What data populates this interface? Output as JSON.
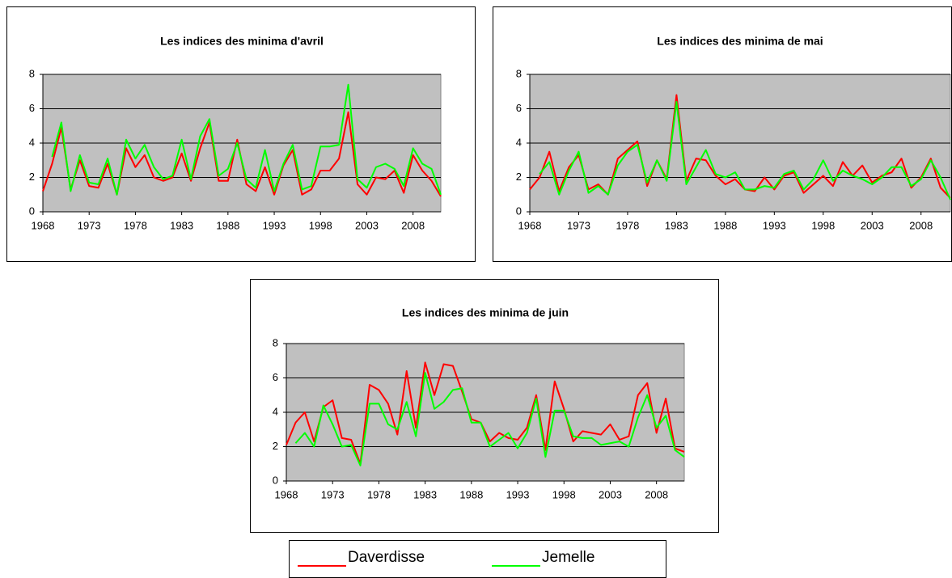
{
  "chart_data": [
    {
      "type": "line",
      "title": "Les indices des minima d'avril",
      "x": [
        1968,
        1969,
        1970,
        1971,
        1972,
        1973,
        1974,
        1975,
        1976,
        1977,
        1978,
        1979,
        1980,
        1981,
        1982,
        1983,
        1984,
        1985,
        1986,
        1987,
        1988,
        1989,
        1990,
        1991,
        1992,
        1993,
        1994,
        1995,
        1996,
        1997,
        1998,
        1999,
        2000,
        2001,
        2002,
        2003,
        2004,
        2005,
        2006,
        2007,
        2008,
        2009,
        2010,
        2011
      ],
      "xlim": [
        1968,
        2011
      ],
      "xticks": [
        1968,
        1973,
        1978,
        1983,
        1988,
        1993,
        1998,
        2003,
        2008
      ],
      "ylim": [
        0,
        8
      ],
      "yticks": [
        0,
        2,
        4,
        6,
        8
      ],
      "grid": true,
      "series": [
        {
          "name": "Daverdisse",
          "color": "#ff0000",
          "values": [
            1.2,
            2.8,
            4.9,
            1.3,
            3.0,
            1.5,
            1.4,
            2.8,
            1.0,
            3.7,
            2.6,
            3.3,
            2.0,
            1.8,
            2.0,
            3.4,
            1.8,
            3.7,
            5.2,
            1.8,
            1.8,
            4.2,
            1.6,
            1.2,
            2.6,
            1.0,
            2.7,
            3.6,
            1.0,
            1.3,
            2.4,
            2.4,
            3.1,
            5.8,
            1.6,
            1.0,
            2.0,
            1.9,
            2.4,
            1.1,
            3.3,
            2.4,
            1.8,
            0.9
          ]
        },
        {
          "name": "Jemelle",
          "color": "#00ff00",
          "values": [
            null,
            3.2,
            5.2,
            1.2,
            3.3,
            1.7,
            1.6,
            3.1,
            1.0,
            4.2,
            3.1,
            3.9,
            2.6,
            1.9,
            2.1,
            4.2,
            1.9,
            4.4,
            5.4,
            2.1,
            2.5,
            4.0,
            1.9,
            1.4,
            3.6,
            1.2,
            2.8,
            3.9,
            1.3,
            1.5,
            3.8,
            3.8,
            3.9,
            7.4,
            1.9,
            1.4,
            2.6,
            2.8,
            2.5,
            1.5,
            3.7,
            2.8,
            2.5,
            1.0
          ]
        }
      ]
    },
    {
      "type": "line",
      "title": "Les indices des minima de mai",
      "x": [
        1968,
        1969,
        1970,
        1971,
        1972,
        1973,
        1974,
        1975,
        1976,
        1977,
        1978,
        1979,
        1980,
        1981,
        1982,
        1983,
        1984,
        1985,
        1986,
        1987,
        1988,
        1989,
        1990,
        1991,
        1992,
        1993,
        1994,
        1995,
        1996,
        1997,
        1998,
        1999,
        2000,
        2001,
        2002,
        2003,
        2004,
        2005,
        2006,
        2007,
        2008,
        2009,
        2010,
        2011
      ],
      "xlim": [
        1968,
        2011
      ],
      "xticks": [
        1968,
        1973,
        1978,
        1983,
        1988,
        1993,
        1998,
        2003,
        2008
      ],
      "ylim": [
        0,
        8
      ],
      "yticks": [
        0,
        2,
        4,
        6,
        8
      ],
      "grid": true,
      "series": [
        {
          "name": "Daverdisse",
          "color": "#ff0000",
          "values": [
            1.3,
            2.0,
            3.5,
            1.2,
            2.6,
            3.3,
            1.3,
            1.6,
            1.0,
            3.1,
            3.6,
            4.1,
            1.5,
            3.0,
            1.9,
            6.8,
            1.8,
            3.1,
            3.0,
            2.1,
            1.6,
            1.9,
            1.3,
            1.2,
            2.0,
            1.3,
            2.1,
            2.3,
            1.1,
            1.6,
            2.1,
            1.5,
            2.9,
            2.1,
            2.7,
            1.7,
            2.1,
            2.3,
            3.1,
            1.4,
            2.0,
            3.1,
            1.4,
            0.8
          ]
        },
        {
          "name": "Jemelle",
          "color": "#00ff00",
          "values": [
            null,
            2.2,
            2.9,
            1.0,
            2.4,
            3.5,
            1.1,
            1.5,
            1.0,
            2.7,
            3.5,
            3.9,
            1.7,
            3.0,
            1.8,
            6.4,
            1.6,
            2.6,
            3.6,
            2.2,
            2.0,
            2.3,
            1.3,
            1.3,
            1.5,
            1.4,
            2.2,
            2.4,
            1.3,
            1.9,
            3.0,
            1.8,
            2.4,
            2.1,
            1.9,
            1.6,
            2.0,
            2.6,
            2.6,
            1.5,
            1.9,
            3.0,
            2.0,
            0.7
          ]
        }
      ]
    },
    {
      "type": "line",
      "title": "Les indices des minima de juin",
      "x": [
        1968,
        1969,
        1970,
        1971,
        1972,
        1973,
        1974,
        1975,
        1976,
        1977,
        1978,
        1979,
        1980,
        1981,
        1982,
        1983,
        1984,
        1985,
        1986,
        1987,
        1988,
        1989,
        1990,
        1991,
        1992,
        1993,
        1994,
        1995,
        1996,
        1997,
        1998,
        1999,
        2000,
        2001,
        2002,
        2003,
        2004,
        2005,
        2006,
        2007,
        2008,
        2009,
        2010,
        2011
      ],
      "xlim": [
        1968,
        2011
      ],
      "xticks": [
        1968,
        1973,
        1978,
        1983,
        1988,
        1993,
        1998,
        2003,
        2008
      ],
      "ylim": [
        0,
        8
      ],
      "yticks": [
        0,
        2,
        4,
        6,
        8
      ],
      "grid": true,
      "series": [
        {
          "name": "Daverdisse",
          "color": "#ff0000",
          "values": [
            2.1,
            3.4,
            4.0,
            2.3,
            4.3,
            4.7,
            2.5,
            2.4,
            1.0,
            5.6,
            5.3,
            4.5,
            2.7,
            6.4,
            3.1,
            6.9,
            5.0,
            6.8,
            6.7,
            5.2,
            3.6,
            3.4,
            2.3,
            2.8,
            2.5,
            2.4,
            3.1,
            5.0,
            1.8,
            5.8,
            4.2,
            2.3,
            2.9,
            2.8,
            2.7,
            3.3,
            2.4,
            2.6,
            5.0,
            5.7,
            2.8,
            4.8,
            1.9,
            1.7
          ]
        },
        {
          "name": "Jemelle",
          "color": "#00ff00",
          "values": [
            null,
            2.2,
            2.8,
            2.0,
            4.4,
            3.3,
            2.0,
            2.1,
            0.9,
            4.5,
            4.5,
            3.3,
            3.0,
            4.6,
            2.6,
            6.3,
            4.2,
            4.6,
            5.3,
            5.4,
            3.4,
            3.4,
            2.0,
            2.4,
            2.8,
            1.9,
            2.8,
            4.8,
            1.4,
            4.1,
            4.1,
            2.6,
            2.5,
            2.5,
            2.1,
            2.2,
            2.3,
            2.0,
            3.7,
            5.0,
            3.1,
            3.8,
            1.8,
            1.4
          ]
        }
      ]
    }
  ]
}
